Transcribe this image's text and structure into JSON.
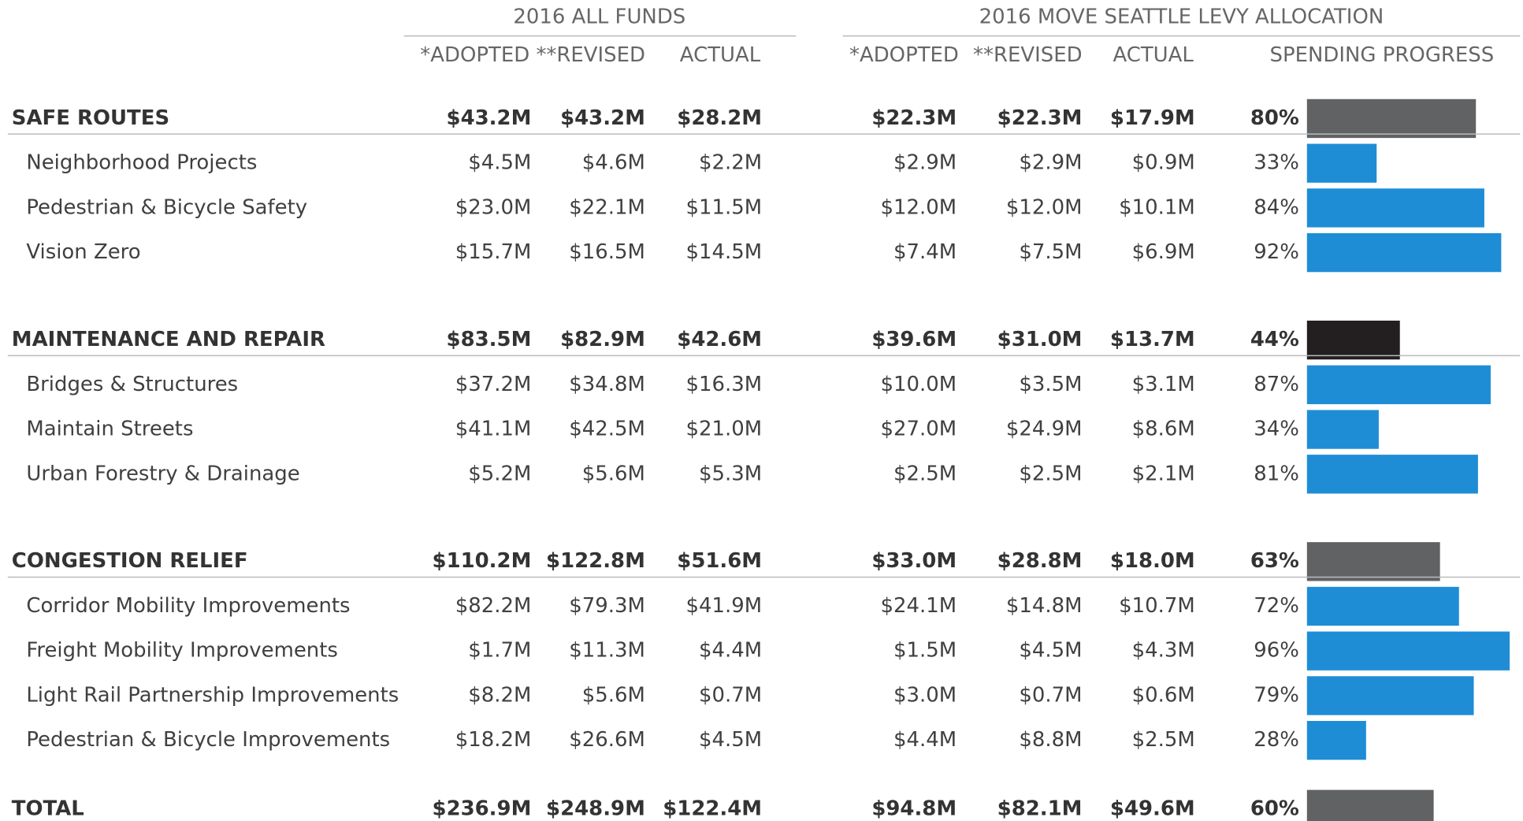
{
  "headers": {
    "all_funds": "2016 ALL FUNDS",
    "levy": "2016 MOVE SEATTLE LEVY ALLOCATION",
    "columns": [
      "*ADOPTED",
      "**REVISED",
      "ACTUAL",
      "*ADOPTED",
      "**REVISED",
      "ACTUAL",
      "SPENDING PROGRESS"
    ]
  },
  "table": {
    "item_color": "#1f8dd6",
    "progress_max": 100,
    "groups": [
      {
        "label": "SAFE ROUTES",
        "color": "#616264",
        "cells": [
          "$43.2M",
          "$43.2M",
          "$28.2M",
          "$22.3M",
          "$22.3M",
          "$17.9M"
        ],
        "progress": {
          "value": 80,
          "label": "80%"
        },
        "items": [
          {
            "label": "Neighborhood Projects",
            "cells": [
              "$4.5M",
              "$4.6M",
              "$2.2M",
              "$2.9M",
              "$2.9M",
              "$0.9M"
            ],
            "progress": {
              "value": 33,
              "label": "33%"
            }
          },
          {
            "label": "Pedestrian & Bicycle Safety",
            "cells": [
              "$23.0M",
              "$22.1M",
              "$11.5M",
              "$12.0M",
              "$12.0M",
              "$10.1M"
            ],
            "progress": {
              "value": 84,
              "label": "84%"
            }
          },
          {
            "label": "Vision Zero",
            "cells": [
              "$15.7M",
              "$16.5M",
              "$14.5M",
              "$7.4M",
              "$7.5M",
              "$6.9M"
            ],
            "progress": {
              "value": 92,
              "label": "92%"
            }
          }
        ]
      },
      {
        "label": "MAINTENANCE AND REPAIR",
        "color": "#231f20",
        "cells": [
          "$83.5M",
          "$82.9M",
          "$42.6M",
          "$39.6M",
          "$31.0M",
          "$13.7M"
        ],
        "progress": {
          "value": 44,
          "label": "44%"
        },
        "items": [
          {
            "label": "Bridges & Structures",
            "cells": [
              "$37.2M",
              "$34.8M",
              "$16.3M",
              "$10.0M",
              "$3.5M",
              "$3.1M"
            ],
            "progress": {
              "value": 87,
              "label": "87%"
            }
          },
          {
            "label": "Maintain Streets",
            "cells": [
              "$41.1M",
              "$42.5M",
              "$21.0M",
              "$27.0M",
              "$24.9M",
              "$8.6M"
            ],
            "progress": {
              "value": 34,
              "label": "34%"
            }
          },
          {
            "label": "Urban Forestry & Drainage",
            "cells": [
              "$5.2M",
              "$5.6M",
              "$5.3M",
              "$2.5M",
              "$2.5M",
              "$2.1M"
            ],
            "progress": {
              "value": 81,
              "label": "81%"
            }
          }
        ]
      },
      {
        "label": "CONGESTION RELIEF",
        "color": "#616264",
        "cells": [
          "$110.2M",
          "$122.8M",
          "$51.6M",
          "$33.0M",
          "$28.8M",
          "$18.0M"
        ],
        "progress": {
          "value": 63,
          "label": "63%"
        },
        "items": [
          {
            "label": "Corridor Mobility Improvements",
            "cells": [
              "$82.2M",
              "$79.3M",
              "$41.9M",
              "$24.1M",
              "$14.8M",
              "$10.7M"
            ],
            "progress": {
              "value": 72,
              "label": "72%"
            }
          },
          {
            "label": "Freight Mobility Improvements",
            "cells": [
              "$1.7M",
              "$11.3M",
              "$4.4M",
              "$1.5M",
              "$4.5M",
              "$4.3M"
            ],
            "progress": {
              "value": 96,
              "label": "96%"
            }
          },
          {
            "label": "Light Rail Partnership Improvements",
            "cells": [
              "$8.2M",
              "$5.6M",
              "$0.7M",
              "$3.0M",
              "$0.7M",
              "$0.6M"
            ],
            "progress": {
              "value": 79,
              "label": "79%"
            }
          },
          {
            "label": "Pedestrian & Bicycle Improvements",
            "cells": [
              "$18.2M",
              "$26.6M",
              "$4.5M",
              "$4.4M",
              "$8.8M",
              "$2.5M"
            ],
            "progress": {
              "value": 28,
              "label": "28%"
            }
          }
        ]
      }
    ],
    "total": {
      "label": "TOTAL",
      "color": "#616264",
      "cells": [
        "$236.9M",
        "$248.9M",
        "$122.4M",
        "$94.8M",
        "$82.1M",
        "$49.6M"
      ],
      "progress": {
        "value": 60,
        "label": "60%"
      }
    }
  }
}
